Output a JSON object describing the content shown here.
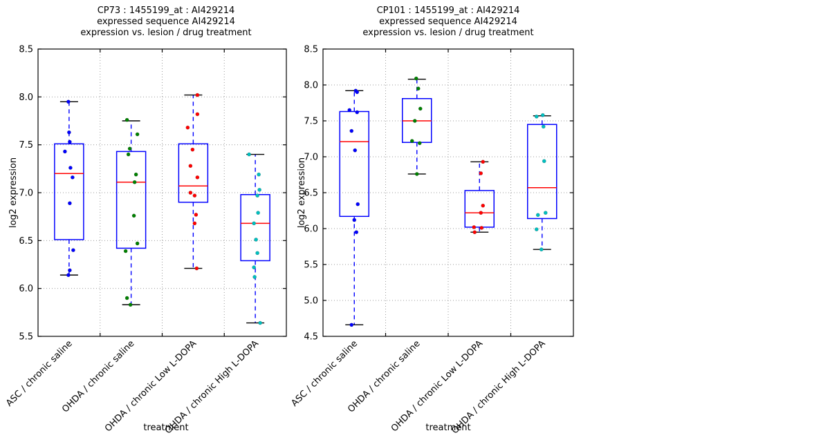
{
  "figure": {
    "background": "#ffffff"
  },
  "style": {
    "box_color": "#0000ff",
    "median_color": "#ff0000",
    "whisker_color": "#0000ff",
    "cap_color": "#000000",
    "grid_color": "#999999",
    "spine_color": "#000000"
  },
  "chart_data": [
    {
      "type": "box",
      "title": "CP73 : 1455199_at : AI429214\nexpressed sequence AI429214\nexpression vs. lesion / drug treatment",
      "xlabel": "treatment",
      "ylabel": "log2 expression",
      "ylim": [
        5.5,
        8.5
      ],
      "yticks": [
        5.5,
        6.0,
        6.5,
        7.0,
        7.5,
        8.0,
        8.5
      ],
      "grid": true,
      "categories": [
        "ASC / chronic saline",
        "OHDA / chronic saline",
        "OHDA / chronic Low L-DOPA",
        "OHDA / chronic High L-DOPA"
      ],
      "groups": [
        {
          "category": "ASC / chronic saline",
          "point_color": "#0000ff",
          "box": {
            "q1": 6.51,
            "median": 7.2,
            "q3": 7.51,
            "whisker_low": 6.14,
            "whisker_high": 7.95
          },
          "points": [
            [
              7.95,
              -1
            ],
            [
              7.63,
              0
            ],
            [
              7.53,
              1
            ],
            [
              7.43,
              -6
            ],
            [
              7.26,
              2
            ],
            [
              7.16,
              5
            ],
            [
              6.89,
              1
            ],
            [
              6.4,
              6
            ],
            [
              6.19,
              1
            ],
            [
              6.14,
              -1
            ]
          ]
        },
        {
          "category": "OHDA / chronic saline",
          "point_color": "#008000",
          "box": {
            "q1": 6.42,
            "median": 7.11,
            "q3": 7.43,
            "whisker_low": 5.83,
            "whisker_high": 7.75
          },
          "points": [
            [
              7.76,
              -6
            ],
            [
              7.61,
              9
            ],
            [
              7.46,
              -2
            ],
            [
              7.4,
              -4
            ],
            [
              7.19,
              7
            ],
            [
              7.11,
              5
            ],
            [
              6.76,
              4
            ],
            [
              6.47,
              9
            ],
            [
              6.39,
              -8
            ],
            [
              5.9,
              -6
            ],
            [
              5.83,
              -1
            ]
          ]
        },
        {
          "category": "OHDA / chronic Low L-DOPA",
          "point_color": "#ff0000",
          "box": {
            "q1": 6.9,
            "median": 7.07,
            "q3": 7.51,
            "whisker_low": 6.21,
            "whisker_high": 8.02
          },
          "points": [
            [
              8.02,
              6
            ],
            [
              7.82,
              6
            ],
            [
              7.68,
              -8
            ],
            [
              7.45,
              -1
            ],
            [
              7.28,
              -4
            ],
            [
              7.16,
              6
            ],
            [
              7.0,
              -4
            ],
            [
              6.97,
              2
            ],
            [
              6.77,
              4
            ],
            [
              6.68,
              2
            ],
            [
              6.21,
              5
            ]
          ]
        },
        {
          "category": "OHDA / chronic High L-DOPA",
          "point_color": "#00bfbf",
          "box": {
            "q1": 6.29,
            "median": 6.68,
            "q3": 6.98,
            "whisker_low": 5.64,
            "whisker_high": 7.4
          },
          "points": [
            [
              7.4,
              -9
            ],
            [
              7.19,
              5
            ],
            [
              7.03,
              6
            ],
            [
              6.97,
              3
            ],
            [
              6.79,
              4
            ],
            [
              6.68,
              -2
            ],
            [
              6.51,
              1
            ],
            [
              6.37,
              3
            ],
            [
              6.22,
              -2
            ],
            [
              6.12,
              -1
            ],
            [
              5.64,
              7
            ]
          ]
        }
      ]
    },
    {
      "type": "box",
      "title": "CP101 : 1455199_at : AI429214\nexpressed sequence AI429214\nexpression vs. lesion / drug treatment",
      "xlabel": "treatment",
      "ylabel": "log2 expression",
      "ylim": [
        4.5,
        8.5
      ],
      "yticks": [
        4.5,
        5.0,
        5.5,
        6.0,
        6.5,
        7.0,
        7.5,
        8.0,
        8.5
      ],
      "grid": true,
      "categories": [
        "ASC / chronic saline",
        "OHDA / chronic saline",
        "OHDA / chronic Low L-DOPA",
        "OHDA / chronic High L-DOPA"
      ],
      "groups": [
        {
          "category": "ASC / chronic saline",
          "point_color": "#0000ff",
          "box": {
            "q1": 6.17,
            "median": 7.21,
            "q3": 7.63,
            "whisker_low": 4.66,
            "whisker_high": 7.92
          },
          "points": [
            [
              7.92,
              2
            ],
            [
              7.9,
              4
            ],
            [
              7.65,
              -7
            ],
            [
              7.62,
              4
            ],
            [
              7.36,
              -4
            ],
            [
              7.09,
              1
            ],
            [
              6.34,
              5
            ],
            [
              6.12,
              0
            ],
            [
              5.95,
              3
            ],
            [
              4.66,
              -4
            ]
          ]
        },
        {
          "category": "OHDA / chronic saline",
          "point_color": "#008000",
          "box": {
            "q1": 7.2,
            "median": 7.5,
            "q3": 7.81,
            "whisker_low": 6.76,
            "whisker_high": 8.08
          },
          "points": [
            [
              8.09,
              -1
            ],
            [
              7.95,
              2
            ],
            [
              7.67,
              5
            ],
            [
              7.5,
              -3
            ],
            [
              7.22,
              -7
            ],
            [
              7.19,
              4
            ],
            [
              6.76,
              0
            ]
          ]
        },
        {
          "category": "OHDA / chronic Low L-DOPA",
          "point_color": "#ff0000",
          "box": {
            "q1": 6.02,
            "median": 6.22,
            "q3": 6.53,
            "whisker_low": 5.95,
            "whisker_high": 6.93
          },
          "points": [
            [
              6.93,
              5
            ],
            [
              6.77,
              2
            ],
            [
              6.32,
              5
            ],
            [
              6.22,
              2
            ],
            [
              6.02,
              -8
            ],
            [
              6.01,
              3
            ],
            [
              5.95,
              -7
            ]
          ]
        },
        {
          "category": "OHDA / chronic High L-DOPA",
          "point_color": "#00bfbf",
          "box": {
            "q1": 6.14,
            "median": 6.57,
            "q3": 7.45,
            "whisker_low": 5.71,
            "whisker_high": 7.57
          },
          "points": [
            [
              7.58,
              1
            ],
            [
              7.56,
              -8
            ],
            [
              7.42,
              2
            ],
            [
              6.94,
              3
            ],
            [
              6.22,
              5
            ],
            [
              6.19,
              -6
            ],
            [
              5.99,
              -8
            ],
            [
              5.71,
              -1
            ]
          ]
        }
      ]
    }
  ]
}
